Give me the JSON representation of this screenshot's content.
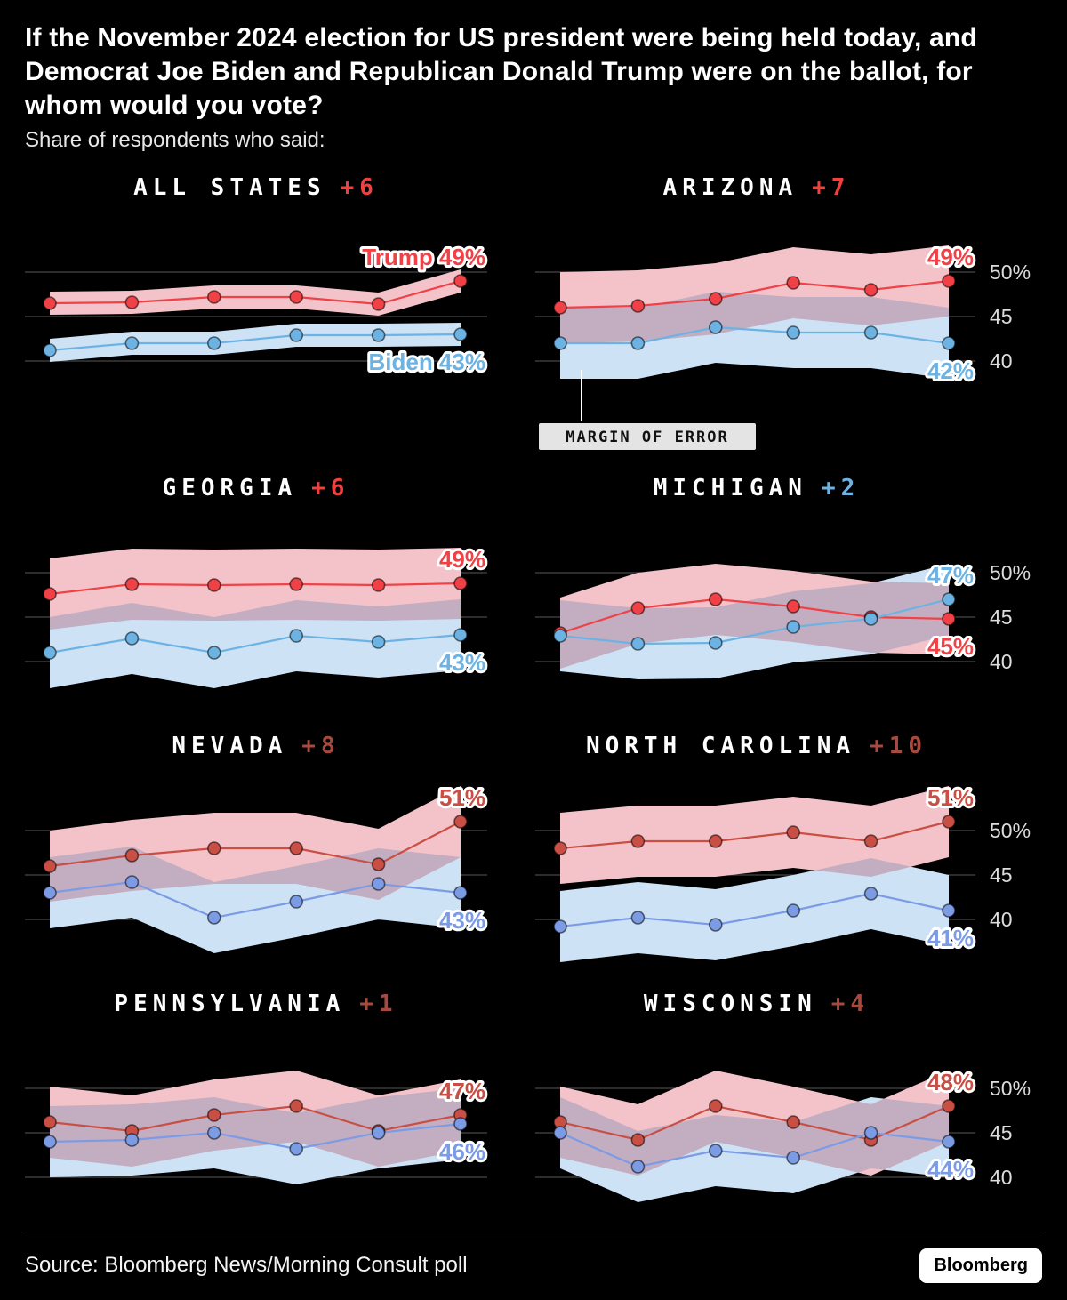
{
  "header": {
    "title": "If the November 2024 election for US president were being held today, and Democrat Joe Biden and Republican Donald Trump were on the ballot, for whom would you vote?",
    "subtitle": "Share of respondents who said:"
  },
  "axis": {
    "tick_labels": [
      "50%",
      "45",
      "40"
    ],
    "tick_values": [
      50,
      45,
      40
    ]
  },
  "moe_label": "MARGIN OF ERROR",
  "footer": {
    "source": "Source: Bloomberg News/Morning Consult poll",
    "logo": "Bloomberg"
  },
  "chart_data": [
    {
      "type": "line",
      "state": "ALL STATES",
      "lead": "+6",
      "lead_color": "#f0413e",
      "band_half_width": 1.3,
      "gridlines": [
        50,
        45,
        40
      ],
      "ylim": [
        34,
        56
      ],
      "moe_callout": false,
      "series": [
        {
          "name": "Trump",
          "color": "#ef4146",
          "band_color": "#f3c3c9",
          "values": [
            46.5,
            46.6,
            47.2,
            47.2,
            46.4,
            49
          ],
          "end_label": "Trump 49%"
        },
        {
          "name": "Biden",
          "color": "#6cb3e4",
          "band_color": "#cde2f5",
          "values": [
            41.2,
            42,
            42,
            42.9,
            42.9,
            43
          ],
          "end_label": "Biden 43%"
        }
      ]
    },
    {
      "type": "line",
      "state": "ARIZONA",
      "lead": "+7",
      "lead_color": "#f0413e",
      "band_half_width": 4,
      "gridlines": [
        50,
        45,
        40
      ],
      "ylim": [
        34,
        56
      ],
      "moe_callout": true,
      "series": [
        {
          "name": "Trump",
          "color": "#ef4146",
          "band_color": "#f3c3c9",
          "values": [
            46,
            46.2,
            47,
            48.8,
            48,
            49
          ],
          "end_label": "49%"
        },
        {
          "name": "Biden",
          "color": "#6cb3e4",
          "band_color": "#cde2f5",
          "values": [
            42,
            42,
            43.8,
            43.2,
            43.2,
            42
          ],
          "end_label": "42%"
        }
      ]
    },
    {
      "type": "line",
      "state": "GEORGIA",
      "lead": "+6",
      "lead_color": "#f0413e",
      "band_half_width": 4,
      "gridlines": [
        50,
        45,
        40
      ],
      "ylim": [
        34,
        56
      ],
      "moe_callout": false,
      "series": [
        {
          "name": "Trump",
          "color": "#ef4146",
          "band_color": "#f3c3c9",
          "values": [
            47.6,
            48.7,
            48.6,
            48.7,
            48.6,
            48.8
          ],
          "end_label": "49%"
        },
        {
          "name": "Biden",
          "color": "#6cb3e4",
          "band_color": "#cde2f5",
          "values": [
            41,
            42.6,
            41,
            42.9,
            42.2,
            43
          ],
          "end_label": "43%"
        }
      ]
    },
    {
      "type": "line",
      "state": "MICHIGAN",
      "lead": "+2",
      "lead_color": "#6cb3e4",
      "band_half_width": 4,
      "gridlines": [
        50,
        45,
        40
      ],
      "ylim": [
        34,
        56
      ],
      "moe_callout": false,
      "series": [
        {
          "name": "Trump",
          "color": "#ef4146",
          "band_color": "#f3c3c9",
          "values": [
            43.2,
            46,
            47,
            46.2,
            45,
            44.8
          ],
          "end_label": "45%"
        },
        {
          "name": "Biden",
          "color": "#6cb3e4",
          "band_color": "#cde2f5",
          "values": [
            42.9,
            42,
            42.1,
            43.9,
            44.8,
            47
          ],
          "end_label": "47%"
        }
      ]
    },
    {
      "type": "line",
      "state": "NEVADA",
      "lead": "+8",
      "lead_color": "#a8493d",
      "band_half_width": 4,
      "gridlines": [
        50,
        45,
        40
      ],
      "ylim": [
        34,
        56
      ],
      "moe_callout": false,
      "series": [
        {
          "name": "Trump",
          "color": "#c94f45",
          "band_color": "#f3c3c9",
          "values": [
            46,
            47.2,
            48,
            48,
            46.2,
            51
          ],
          "end_label": "51%"
        },
        {
          "name": "Biden",
          "color": "#7b9be4",
          "band_color": "#cde2f5",
          "values": [
            43,
            44.2,
            40.2,
            42,
            44,
            43
          ],
          "end_label": "43%"
        }
      ]
    },
    {
      "type": "line",
      "state": "NORTH CAROLINA",
      "lead": "+10",
      "lead_color": "#a8493d",
      "band_half_width": 4,
      "gridlines": [
        50,
        45,
        40
      ],
      "ylim": [
        34,
        56
      ],
      "moe_callout": false,
      "series": [
        {
          "name": "Trump",
          "color": "#c94f45",
          "band_color": "#f3c3c9",
          "values": [
            48,
            48.8,
            48.8,
            49.8,
            48.8,
            51
          ],
          "end_label": "51%"
        },
        {
          "name": "Biden",
          "color": "#7b9be4",
          "band_color": "#cde2f5",
          "values": [
            39.2,
            40.2,
            39.4,
            41,
            42.9,
            41
          ],
          "end_label": "41%"
        }
      ]
    },
    {
      "type": "line",
      "state": "PENNSYLVANIA",
      "lead": "+1",
      "lead_color": "#a8493d",
      "band_half_width": 4,
      "gridlines": [
        50,
        45,
        40
      ],
      "ylim": [
        34,
        56
      ],
      "moe_callout": false,
      "series": [
        {
          "name": "Trump",
          "color": "#c94f45",
          "band_color": "#f3c3c9",
          "values": [
            46.2,
            45.2,
            47,
            48,
            45.2,
            47
          ],
          "end_label": "47%"
        },
        {
          "name": "Biden",
          "color": "#7b9be4",
          "band_color": "#cde2f5",
          "values": [
            44,
            44.2,
            45,
            43.2,
            45,
            46
          ],
          "end_label": "46%"
        }
      ]
    },
    {
      "type": "line",
      "state": "WISCONSIN",
      "lead": "+4",
      "lead_color": "#a8493d",
      "band_half_width": 4,
      "gridlines": [
        50,
        45,
        40
      ],
      "ylim": [
        34,
        56
      ],
      "moe_callout": false,
      "series": [
        {
          "name": "Trump",
          "color": "#c94f45",
          "band_color": "#f3c3c9",
          "values": [
            46.2,
            44.2,
            48,
            46.2,
            44.2,
            48
          ],
          "end_label": "48%"
        },
        {
          "name": "Biden",
          "color": "#7b9be4",
          "band_color": "#cde2f5",
          "values": [
            45,
            41.2,
            43,
            42.2,
            45,
            44
          ],
          "end_label": "44%"
        }
      ]
    }
  ]
}
